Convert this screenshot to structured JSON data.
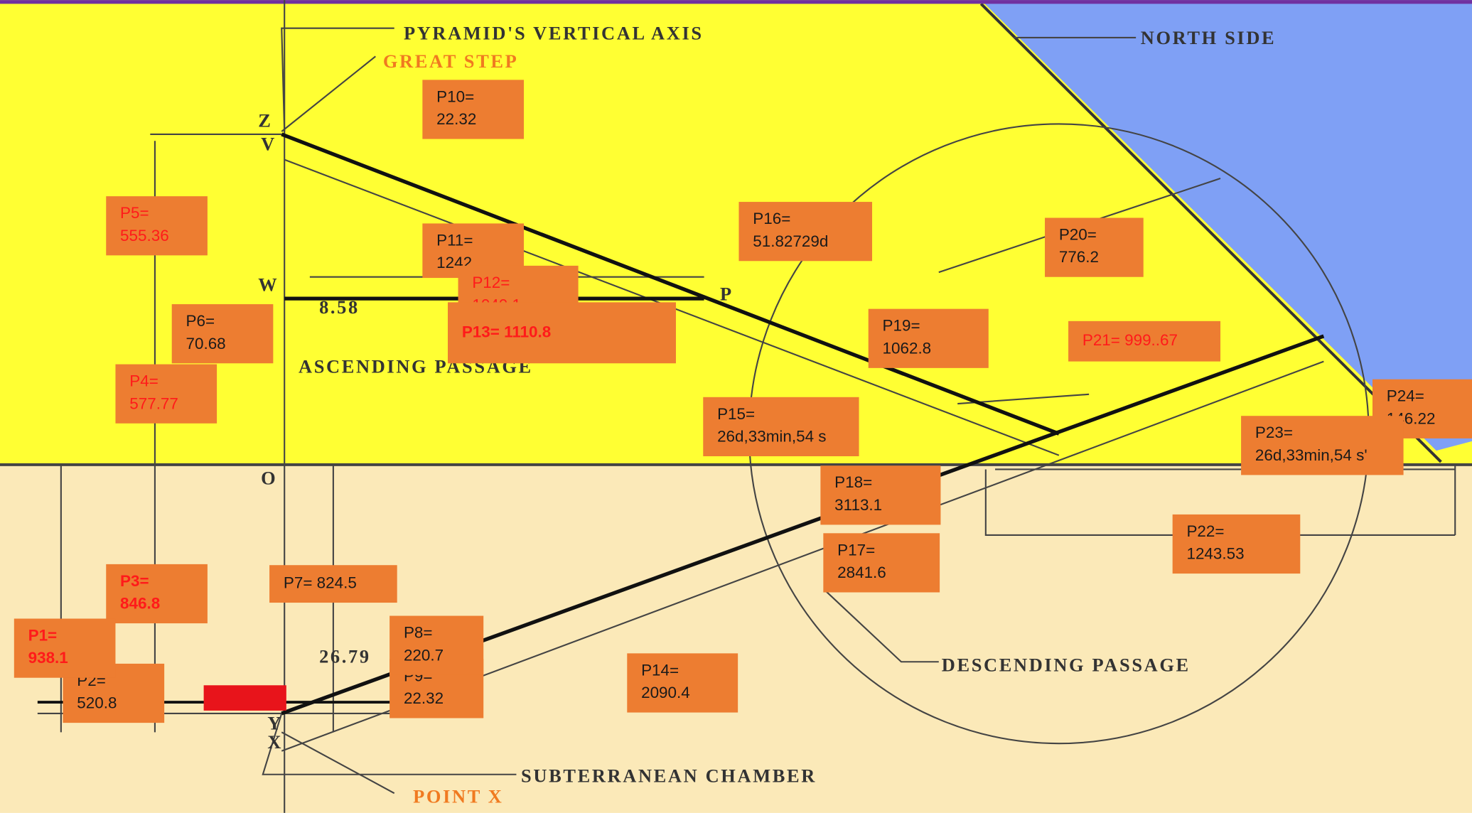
{
  "diagram": {
    "texts": [
      "PYRAMID'S VERTICAL AXIS",
      "GREAT STEP",
      "NORTH SIDE",
      "ASCENDING PASSAGE",
      "DESCENDING PASSAGE",
      "SUBTERRANEAN CHAMBER",
      "POINT X",
      "Z",
      "V",
      "W",
      "P",
      "O",
      "Y",
      "X",
      "8.58",
      "26.79"
    ]
  },
  "labels": [
    {
      "lines": [
        "P10=",
        "22.32"
      ],
      "color": "black"
    },
    {
      "lines": [
        "P5=",
        "555.36"
      ],
      "color": "red"
    },
    {
      "lines": [
        "P11=",
        "1242"
      ],
      "color": "black"
    },
    {
      "lines": [
        "P12=",
        "1040.1"
      ],
      "color": "red"
    },
    {
      "lines": [
        "P13= 1110.8"
      ],
      "color": "red",
      "bold": true,
      "large": true
    },
    {
      "lines": [
        "P16=",
        "51.82729d"
      ],
      "color": "black"
    },
    {
      "lines": [
        "P6=",
        "70.68"
      ],
      "color": "black"
    },
    {
      "lines": [
        "P4=",
        "577.77"
      ],
      "color": "red"
    },
    {
      "lines": [
        "P19=",
        "1062.8"
      ],
      "color": "black"
    },
    {
      "lines": [
        "P20=",
        "776.2"
      ],
      "color": "black"
    },
    {
      "lines": [
        "P21= 999..67"
      ],
      "color": "red",
      "large": true
    },
    {
      "lines": [
        "P15=",
        "26d,33min,54 s"
      ],
      "color": "black"
    },
    {
      "lines": [
        "P24=",
        "146.22"
      ],
      "color": "black"
    },
    {
      "lines": [
        "P23=",
        "26d,33min,54 s'"
      ],
      "color": "black"
    },
    {
      "lines": [
        "P18=",
        "3113.1"
      ],
      "color": "black"
    },
    {
      "lines": [
        "P17=",
        "2841.6"
      ],
      "color": "black"
    },
    {
      "lines": [
        "P22=",
        "1243.53"
      ],
      "color": "black"
    },
    {
      "lines": [
        "P3=",
        "846.8"
      ],
      "color": "red",
      "bold": true
    },
    {
      "lines": [
        "P7= 824.5"
      ],
      "color": "black"
    },
    {
      "lines": [
        "P2=",
        "520.8"
      ],
      "color": "black"
    },
    {
      "lines": [
        "P1=",
        "938.1"
      ],
      "color": "red",
      "bold": true
    },
    {
      "lines": [
        "P9=",
        "22.32"
      ],
      "color": "black"
    },
    {
      "lines": [
        "P8=",
        "220.7"
      ],
      "color": "black"
    },
    {
      "lines": [
        "P14=",
        "2090.4"
      ],
      "color": "black"
    }
  ]
}
